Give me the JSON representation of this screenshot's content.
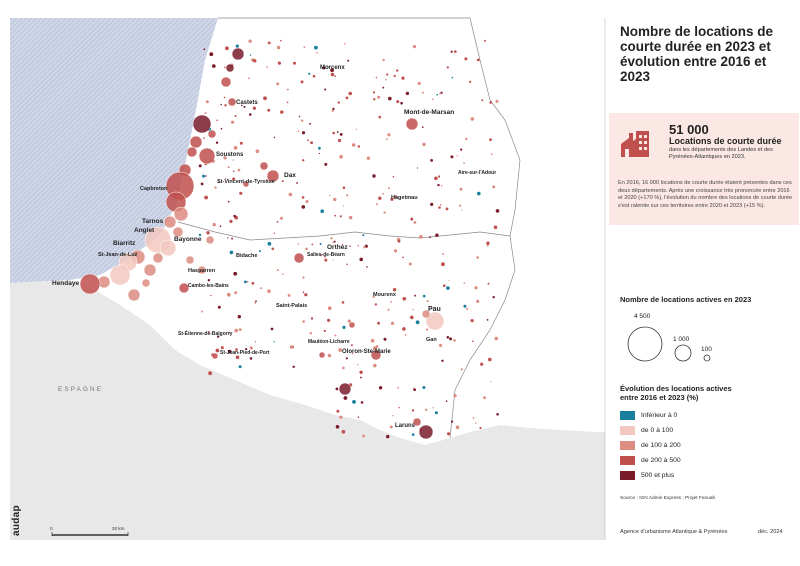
{
  "title": "Nombre de locations de courte durée en 2023 et évolution entre 2016 et 2023",
  "stat": {
    "number": "51 000",
    "label": "Locations de courte durée",
    "sublabel": "dans les départements des Landes et des Pyrénées-Atlantiques en 2023.",
    "body": "En 2016, 16 000 locations de courte durée étaient présentes dans ces deux départements. Après une croissance très prononcée entre 2016 et 2020 (+170 %), l'évolution du nombre des locations de courte durée s'est ralentie sur ces territoires entre 2020 et 2023 (+15 %).",
    "icon": "building-icon"
  },
  "legend_size": {
    "title": "Nombre de locations actives en 2023",
    "labels": [
      "4 500",
      "1 000",
      "100"
    ]
  },
  "legend_color": {
    "title": "Évolution des locations actives entre 2016 et 2023 (%)",
    "classes": [
      {
        "label": "Inférieur à 0",
        "color": "#1a7f9c"
      },
      {
        "label": "de 0 à 100",
        "color": "#f2c8c0"
      },
      {
        "label": "de 100 à 200",
        "color": "#dc8c80"
      },
      {
        "label": "de 200 à 500",
        "color": "#c0504d"
      },
      {
        "label": "500 et plus",
        "color": "#7a1b2a"
      }
    ]
  },
  "source": "Source : IGN Admin Express ; Projet Fenuah",
  "footer": {
    "agency": "Agence d'urbanisme Atlantique & Pyrénées",
    "date": "déc. 2024"
  },
  "logo": "audap",
  "scale": {
    "start": "0",
    "end": "20 km"
  },
  "country_label": "ESPAGNE",
  "places": [
    "Morcenx",
    "Castets",
    "Soustons",
    "Mont-de-Marsan",
    "St-Vincent-de-Tyrosse",
    "Dax",
    "Capbreton",
    "Aire-sur-l'Adour",
    "Hagetmau",
    "Tarnos",
    "Anglet",
    "Biarritz",
    "Bayonne",
    "St-Jean-de-Luz",
    "Hendaye",
    "Bidache",
    "Orthez",
    "Salies-de-Béarn",
    "Hasparren",
    "Cambo-les-Bains",
    "Saint-Palais",
    "Mourenx",
    "Pau",
    "Gan",
    "St-Étienne-de-Baïgorry",
    "Mauléon-Licharre",
    "Oloron-Ste-Marie",
    "St-Jean-Pied-de-Port",
    "Laruns"
  ],
  "colors": {
    "ocean": "#bcc6dd",
    "spain": "#e6e6e6",
    "border": "#8a8a8a",
    "accent": "#c0504d"
  }
}
